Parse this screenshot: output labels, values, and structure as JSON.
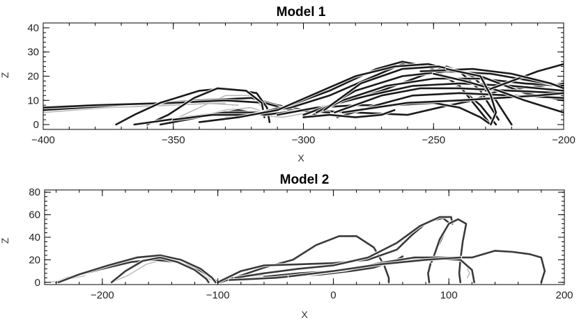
{
  "panels": [
    {
      "title": "Model 1",
      "xlabel": "X",
      "ylabel": "Z",
      "xlim": [
        -400,
        -200
      ],
      "ylim": [
        -2,
        42
      ],
      "xticks": [
        -400,
        -350,
        -300,
        -250,
        -200
      ],
      "xtick_labels": [
        "−400",
        "−350",
        "−300",
        "−250",
        "−200"
      ],
      "yticks": [
        0,
        10,
        20,
        30,
        40
      ],
      "ytick_labels": [
        "0",
        "10",
        "20",
        "30",
        "40"
      ],
      "x_minor_step": 10,
      "y_minor_step": 2,
      "line_color": "#1a1a1a",
      "faint_color": "#b8b8b8",
      "lines": [
        [
          [
            -400,
            6
          ],
          [
            -370,
            8
          ],
          [
            -340,
            10
          ],
          [
            -320,
            11
          ],
          [
            -310,
            8
          ],
          [
            -300,
            6
          ],
          [
            -280,
            5
          ],
          [
            -260,
            4
          ],
          [
            -248,
            7
          ],
          [
            -235,
            10
          ],
          [
            -225,
            14
          ],
          [
            -200,
            17
          ]
        ],
        [
          [
            -400,
            7
          ],
          [
            -380,
            8
          ],
          [
            -350,
            9
          ],
          [
            -330,
            10
          ],
          [
            -315,
            9
          ],
          [
            -305,
            6
          ],
          [
            -290,
            5
          ]
        ],
        [
          [
            -372,
            0
          ],
          [
            -365,
            4
          ],
          [
            -355,
            9
          ],
          [
            -340,
            14
          ],
          [
            -330,
            15
          ],
          [
            -318,
            13
          ],
          [
            -314,
            7
          ],
          [
            -313,
            1
          ]
        ],
        [
          [
            -360,
            0
          ],
          [
            -352,
            4
          ],
          [
            -342,
            11
          ],
          [
            -333,
            15
          ],
          [
            -322,
            14
          ],
          [
            -316,
            9
          ],
          [
            -315,
            3
          ]
        ],
        [
          [
            -355,
            0
          ],
          [
            -335,
            4
          ],
          [
            -325,
            6
          ],
          [
            -315,
            4
          ],
          [
            -300,
            6
          ],
          [
            -285,
            9
          ],
          [
            -270,
            14
          ],
          [
            -255,
            20
          ],
          [
            -245,
            24
          ],
          [
            -235,
            20
          ],
          [
            -226,
            10
          ],
          [
            -220,
            0
          ]
        ],
        [
          [
            -365,
            0
          ],
          [
            -345,
            3
          ],
          [
            -330,
            5
          ],
          [
            -318,
            5
          ],
          [
            -305,
            7
          ],
          [
            -290,
            12
          ],
          [
            -275,
            19
          ],
          [
            -262,
            25
          ],
          [
            -252,
            24
          ],
          [
            -243,
            18
          ],
          [
            -232,
            8
          ],
          [
            -226,
            0
          ]
        ],
        [
          [
            -350,
            2
          ],
          [
            -335,
            4
          ],
          [
            -320,
            4
          ],
          [
            -305,
            8
          ],
          [
            -290,
            14
          ],
          [
            -272,
            23
          ],
          [
            -262,
            26
          ],
          [
            -252,
            24
          ],
          [
            -240,
            16
          ],
          [
            -228,
            0
          ]
        ],
        [
          [
            -340,
            1
          ],
          [
            -325,
            3
          ],
          [
            -310,
            6
          ],
          [
            -295,
            13
          ],
          [
            -280,
            20
          ],
          [
            -265,
            24
          ],
          [
            -252,
            25
          ],
          [
            -240,
            22
          ],
          [
            -232,
            14
          ],
          [
            -225,
            2
          ]
        ],
        [
          [
            -310,
            4
          ],
          [
            -295,
            7
          ],
          [
            -280,
            8
          ],
          [
            -265,
            8
          ],
          [
            -250,
            9
          ],
          [
            -240,
            7
          ],
          [
            -232,
            3
          ],
          [
            -228,
            0
          ]
        ],
        [
          [
            -300,
            4
          ],
          [
            -290,
            8
          ],
          [
            -275,
            12
          ],
          [
            -258,
            16
          ],
          [
            -240,
            17
          ],
          [
            -220,
            16
          ],
          [
            -200,
            14
          ]
        ],
        [
          [
            -298,
            3
          ],
          [
            -285,
            10
          ],
          [
            -268,
            16
          ],
          [
            -250,
            19
          ],
          [
            -232,
            19
          ],
          [
            -215,
            17
          ],
          [
            -200,
            16
          ]
        ],
        [
          [
            -295,
            5
          ],
          [
            -280,
            14
          ],
          [
            -262,
            20
          ],
          [
            -245,
            22
          ],
          [
            -228,
            21
          ],
          [
            -212,
            18
          ],
          [
            -200,
            16
          ]
        ],
        [
          [
            -292,
            6
          ],
          [
            -278,
            17
          ],
          [
            -262,
            23
          ],
          [
            -248,
            24
          ],
          [
            -232,
            20
          ],
          [
            -215,
            13
          ],
          [
            -200,
            10
          ]
        ],
        [
          [
            -287,
            3
          ],
          [
            -272,
            8
          ],
          [
            -258,
            12
          ],
          [
            -240,
            13
          ],
          [
            -220,
            12
          ],
          [
            -200,
            11
          ]
        ],
        [
          [
            -288,
            5
          ],
          [
            -270,
            12
          ],
          [
            -255,
            15
          ],
          [
            -240,
            15
          ],
          [
            -220,
            14
          ],
          [
            -200,
            13
          ]
        ],
        [
          [
            -285,
            5
          ],
          [
            -260,
            9
          ],
          [
            -240,
            10
          ],
          [
            -225,
            11
          ],
          [
            -210,
            12
          ],
          [
            -200,
            13
          ]
        ],
        [
          [
            -250,
            21
          ],
          [
            -238,
            18
          ],
          [
            -225,
            14
          ],
          [
            -215,
            10
          ],
          [
            -200,
            5
          ]
        ],
        [
          [
            -230,
            14
          ],
          [
            -220,
            18
          ],
          [
            -210,
            22
          ],
          [
            -200,
            25
          ]
        ],
        [
          [
            -255,
            22
          ],
          [
            -235,
            23
          ],
          [
            -220,
            21
          ],
          [
            -205,
            17
          ],
          [
            -200,
            15
          ]
        ],
        [
          [
            -245,
            23
          ],
          [
            -232,
            20
          ],
          [
            -228,
            12
          ],
          [
            -226,
            5
          ],
          [
            -228,
            0
          ]
        ],
        [
          [
            -300,
            3
          ],
          [
            -290,
            4
          ],
          [
            -280,
            3
          ],
          [
            -270,
            4
          ],
          [
            -265,
            6
          ]
        ]
      ],
      "faint": [
        [
          [
            -400,
            5
          ],
          [
            -375,
            7
          ],
          [
            -350,
            8
          ],
          [
            -330,
            9
          ]
        ],
        [
          [
            -400,
            6.5
          ],
          [
            -360,
            8
          ],
          [
            -340,
            9
          ],
          [
            -325,
            8
          ]
        ],
        [
          [
            -352,
            1
          ],
          [
            -340,
            7
          ],
          [
            -330,
            12
          ],
          [
            -320,
            12
          ],
          [
            -315,
            6
          ]
        ],
        [
          [
            -345,
            2
          ],
          [
            -330,
            6
          ],
          [
            -320,
            7
          ],
          [
            -312,
            4
          ]
        ],
        [
          [
            -330,
            3
          ],
          [
            -318,
            4
          ],
          [
            -308,
            3
          ],
          [
            -298,
            5
          ]
        ]
      ]
    },
    {
      "title": "Model 2",
      "xlabel": "X",
      "ylabel": "Z",
      "xlim": [
        -250,
        200
      ],
      "ylim": [
        -2,
        82
      ],
      "xticks": [
        -200,
        -100,
        0,
        100,
        200
      ],
      "xtick_labels": [
        "−200",
        "−100",
        "0",
        "100",
        "200"
      ],
      "yticks": [
        0,
        20,
        40,
        60,
        80
      ],
      "ytick_labels": [
        "0",
        "20",
        "40",
        "60",
        "80"
      ],
      "x_minor_step": 20,
      "y_minor_step": 4,
      "line_color": "#3a3a3a",
      "faint_color": "#bdbdbd",
      "lines": [
        [
          [
            -240,
            0
          ],
          [
            -230,
            4
          ],
          [
            -200,
            12
          ],
          [
            -175,
            18
          ],
          [
            -155,
            20
          ],
          [
            -135,
            18
          ],
          [
            -118,
            12
          ],
          [
            -105,
            4
          ],
          [
            -100,
            0
          ]
        ],
        [
          [
            -238,
            0
          ],
          [
            -220,
            7
          ],
          [
            -195,
            15
          ],
          [
            -170,
            22
          ],
          [
            -150,
            24
          ],
          [
            -132,
            20
          ],
          [
            -115,
            12
          ],
          [
            -105,
            4
          ],
          [
            -102,
            0
          ]
        ],
        [
          [
            -192,
            0
          ],
          [
            -180,
            10
          ],
          [
            -165,
            19
          ],
          [
            -150,
            22
          ],
          [
            -135,
            18
          ],
          [
            -120,
            11
          ],
          [
            -110,
            3
          ],
          [
            -108,
            0
          ]
        ],
        [
          [
            -98,
            0
          ],
          [
            -80,
            6
          ],
          [
            -60,
            13
          ],
          [
            -35,
            20
          ],
          [
            -15,
            33
          ],
          [
            5,
            41
          ],
          [
            20,
            41
          ],
          [
            35,
            31
          ],
          [
            44,
            15
          ],
          [
            48,
            4
          ],
          [
            48,
            0
          ]
        ],
        [
          [
            -100,
            0
          ],
          [
            -80,
            10
          ],
          [
            -60,
            15
          ],
          [
            -30,
            16
          ],
          [
            0,
            17
          ],
          [
            30,
            20
          ],
          [
            55,
            29
          ],
          [
            68,
            42
          ],
          [
            82,
            54
          ],
          [
            95,
            57
          ],
          [
            100,
            53
          ],
          [
            92,
            35
          ],
          [
            85,
            20
          ],
          [
            82,
            8
          ],
          [
            83,
            0
          ]
        ],
        [
          [
            -85,
            4
          ],
          [
            -60,
            8
          ],
          [
            -30,
            12
          ],
          [
            0,
            15
          ],
          [
            30,
            22
          ],
          [
            55,
            35
          ],
          [
            75,
            50
          ],
          [
            92,
            58
          ],
          [
            102,
            58
          ],
          [
            103,
            52
          ]
        ],
        [
          [
            85,
            18
          ],
          [
            88,
            26
          ],
          [
            92,
            38
          ],
          [
            100,
            52
          ],
          [
            108,
            56
          ],
          [
            115,
            52
          ],
          [
            112,
            36
          ],
          [
            110,
            20
          ],
          [
            109,
            8
          ],
          [
            110,
            0
          ]
        ],
        [
          [
            -70,
            3
          ],
          [
            -40,
            5
          ],
          [
            -10,
            7
          ],
          [
            15,
            10
          ],
          [
            35,
            13
          ],
          [
            55,
            20
          ],
          [
            60,
            23
          ]
        ],
        [
          [
            -60,
            5
          ],
          [
            -30,
            8
          ],
          [
            0,
            10
          ],
          [
            30,
            15
          ],
          [
            60,
            20
          ],
          [
            90,
            21
          ],
          [
            110,
            20
          ],
          [
            120,
            11
          ],
          [
            122,
            0
          ]
        ],
        [
          [
            -50,
            4
          ],
          [
            -20,
            7
          ],
          [
            10,
            11
          ],
          [
            40,
            17
          ],
          [
            70,
            22
          ],
          [
            100,
            22
          ],
          [
            120,
            22
          ],
          [
            140,
            28
          ],
          [
            155,
            27
          ],
          [
            170,
            25
          ],
          [
            180,
            22
          ],
          [
            183,
            10
          ],
          [
            180,
            0
          ]
        ],
        [
          [
            -40,
            5
          ],
          [
            0,
            10
          ],
          [
            40,
            16
          ],
          [
            80,
            20
          ],
          [
            110,
            22
          ]
        ],
        [
          [
            -90,
            2
          ],
          [
            -70,
            3
          ],
          [
            -50,
            4
          ],
          [
            -40,
            5
          ]
        ]
      ],
      "faint": [
        [
          [
            -192,
            0
          ],
          [
            -178,
            6
          ],
          [
            -162,
            16
          ],
          [
            -148,
            20
          ]
        ],
        [
          [
            -120,
            12
          ],
          [
            -112,
            6
          ],
          [
            -106,
            2
          ]
        ],
        [
          [
            -90,
            3
          ],
          [
            -75,
            5
          ],
          [
            -60,
            6
          ]
        ],
        [
          [
            116,
            4
          ],
          [
            118,
            8
          ],
          [
            116,
            12
          ]
        ],
        [
          [
            -246,
            0
          ],
          [
            -232,
            2
          ],
          [
            -215,
            6
          ]
        ]
      ]
    }
  ]
}
